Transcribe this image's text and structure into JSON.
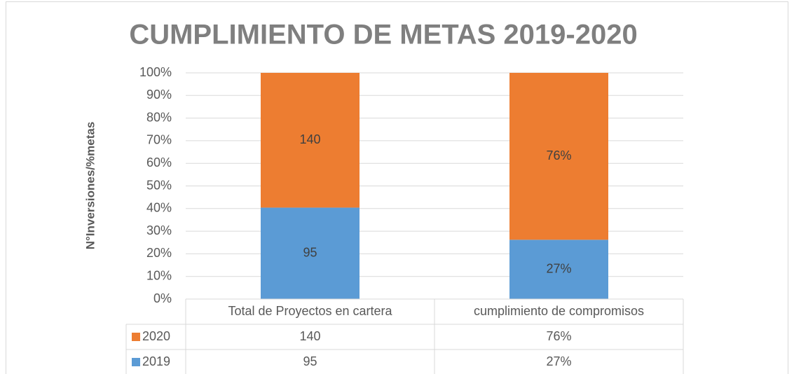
{
  "chart_data": {
    "type": "bar",
    "stacking": "percent",
    "title": "CUMPLIMIENTO DE METAS 2019-2020",
    "y_label": "N°Inversiones/%metas",
    "categories": [
      "Total de Proyectos en cartera",
      "cumplimiento de compromisos"
    ],
    "series": [
      {
        "name": "2019",
        "color": "#5b9bd5",
        "values": [
          95,
          27
        ],
        "value_labels": [
          "95",
          "27%"
        ]
      },
      {
        "name": "2020",
        "color": "#ed7d31",
        "values": [
          140,
          76
        ],
        "value_labels": [
          "140",
          "76%"
        ]
      }
    ],
    "ylim": [
      0,
      100
    ],
    "yticks": [
      {
        "value": 0,
        "label": "0%"
      },
      {
        "value": 10,
        "label": "10%"
      },
      {
        "value": 20,
        "label": "20%"
      },
      {
        "value": 30,
        "label": "30%"
      },
      {
        "value": 40,
        "label": "40%"
      },
      {
        "value": 50,
        "label": "50%"
      },
      {
        "value": 60,
        "label": "60%"
      },
      {
        "value": 70,
        "label": "70%"
      },
      {
        "value": 80,
        "label": "80%"
      },
      {
        "value": 90,
        "label": "90%"
      },
      {
        "value": 100,
        "label": "100%"
      }
    ],
    "grid": true,
    "data_table": true
  }
}
